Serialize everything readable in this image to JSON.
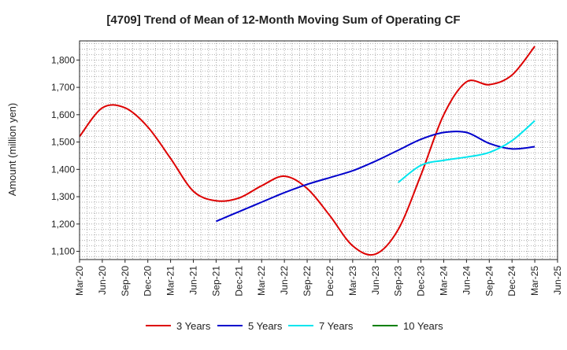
{
  "chart_data": {
    "type": "line",
    "title": "[4709]  Trend of Mean of 12-Month Moving Sum of Operating CF",
    "xlabel": "",
    "ylabel": "Amount (million yen)",
    "ylim": [
      1070,
      1870
    ],
    "yticks": [
      1100,
      1200,
      1300,
      1400,
      1500,
      1600,
      1700,
      1800
    ],
    "ytick_labels": [
      "1,100",
      "1,200",
      "1,300",
      "1,400",
      "1,500",
      "1,600",
      "1,700",
      "1,800"
    ],
    "categories": [
      "Mar-20",
      "Jun-20",
      "Sep-20",
      "Dec-20",
      "Mar-21",
      "Jun-21",
      "Sep-21",
      "Dec-21",
      "Mar-22",
      "Jun-22",
      "Sep-22",
      "Dec-22",
      "Mar-23",
      "Jun-23",
      "Sep-23",
      "Dec-23",
      "Mar-24",
      "Jun-24",
      "Sep-24",
      "Dec-24",
      "Mar-25",
      "Jun-25"
    ],
    "grid": true,
    "legend": "bottom",
    "series": [
      {
        "name": "3 Years",
        "color": "#dd0000",
        "points": [
          [
            0,
            1520
          ],
          [
            1,
            1625
          ],
          [
            2,
            1625
          ],
          [
            3,
            1555
          ],
          [
            4,
            1440
          ],
          [
            5,
            1320
          ],
          [
            6,
            1285
          ],
          [
            7,
            1295
          ],
          [
            8,
            1340
          ],
          [
            9,
            1375
          ],
          [
            10,
            1330
          ],
          [
            11,
            1230
          ],
          [
            12,
            1120
          ],
          [
            13,
            1090
          ],
          [
            14,
            1180
          ],
          [
            15,
            1380
          ],
          [
            16,
            1600
          ],
          [
            17,
            1720
          ],
          [
            18,
            1710
          ],
          [
            19,
            1745
          ],
          [
            20,
            1850
          ]
        ]
      },
      {
        "name": "5 Years",
        "color": "#0000cc",
        "points": [
          [
            6,
            1210
          ],
          [
            7,
            1245
          ],
          [
            8,
            1280
          ],
          [
            9,
            1315
          ],
          [
            10,
            1345
          ],
          [
            11,
            1370
          ],
          [
            12,
            1395
          ],
          [
            13,
            1430
          ],
          [
            14,
            1470
          ],
          [
            15,
            1510
          ],
          [
            16,
            1535
          ],
          [
            17,
            1535
          ],
          [
            18,
            1495
          ],
          [
            19,
            1475
          ],
          [
            20,
            1483
          ]
        ]
      },
      {
        "name": "7 Years",
        "color": "#00e5ee",
        "points": [
          [
            14,
            1352
          ],
          [
            15,
            1415
          ],
          [
            16,
            1433
          ],
          [
            17,
            1445
          ],
          [
            18,
            1462
          ],
          [
            19,
            1505
          ],
          [
            20,
            1578
          ]
        ]
      },
      {
        "name": "10 Years",
        "color": "#008000",
        "points": []
      }
    ]
  }
}
